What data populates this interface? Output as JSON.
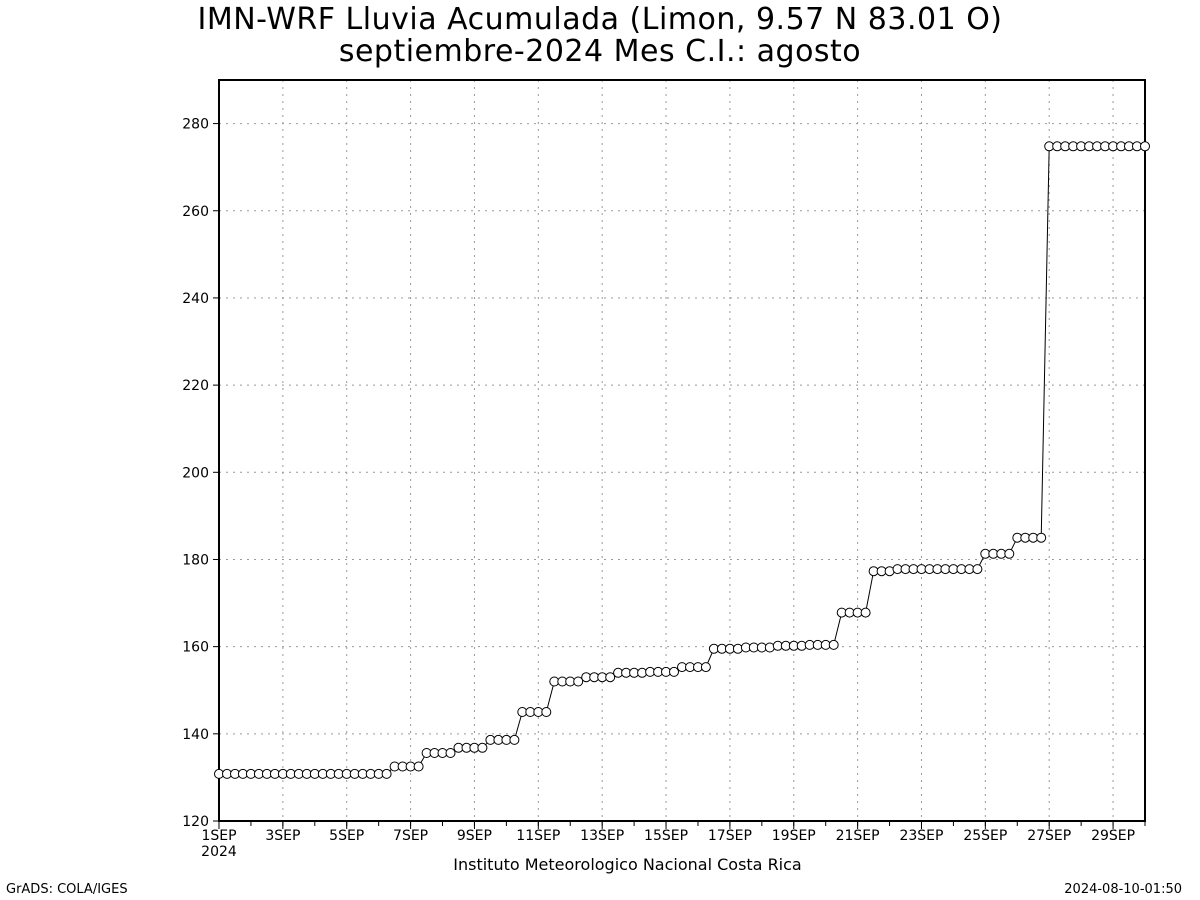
{
  "chart_data": {
    "type": "line",
    "title": "IMN-WRF  Lluvia Acumulada (Limon, 9.57  N 83.01  O)",
    "subtitle": "septiembre-2024 Mes C.I.: agosto",
    "xlabel": "",
    "ylabel": "",
    "ylim": [
      120,
      290
    ],
    "xlim": [
      1,
      30
    ],
    "yticks": [
      120,
      140,
      160,
      180,
      200,
      220,
      240,
      260,
      280
    ],
    "xticks": [
      {
        "day": 1,
        "label": "1SEP"
      },
      {
        "day": 3,
        "label": "3SEP"
      },
      {
        "day": 5,
        "label": "5SEP"
      },
      {
        "day": 7,
        "label": "7SEP"
      },
      {
        "day": 9,
        "label": "9SEP"
      },
      {
        "day": 11,
        "label": "11SEP"
      },
      {
        "day": 13,
        "label": "13SEP"
      },
      {
        "day": 15,
        "label": "15SEP"
      },
      {
        "day": 17,
        "label": "17SEP"
      },
      {
        "day": 19,
        "label": "19SEP"
      },
      {
        "day": 21,
        "label": "21SEP"
      },
      {
        "day": 23,
        "label": "23SEP"
      },
      {
        "day": 25,
        "label": "25SEP"
      },
      {
        "day": 27,
        "label": "27SEP"
      },
      {
        "day": 29,
        "label": "29SEP"
      }
    ],
    "year_label": "2024",
    "grid": true,
    "marker": "open-circle",
    "series": [
      {
        "steps_per_day": 4,
        "values": [
          130.8,
          130.8,
          130.8,
          130.8,
          130.8,
          130.8,
          130.8,
          130.8,
          130.8,
          130.8,
          130.8,
          130.8,
          130.8,
          130.8,
          130.8,
          130.8,
          130.8,
          130.8,
          130.8,
          130.8,
          130.8,
          130.8,
          132.5,
          132.5,
          132.5,
          132.5,
          135.6,
          135.6,
          135.6,
          135.6,
          136.8,
          136.8,
          136.8,
          136.8,
          138.6,
          138.6,
          138.6,
          138.6,
          145.0,
          145.0,
          145.0,
          145.0,
          152.0,
          152.0,
          152.0,
          152.0,
          153.0,
          153.0,
          153.0,
          153.0,
          154.0,
          154.0,
          154.0,
          154.0,
          154.2,
          154.2,
          154.2,
          154.2,
          155.3,
          155.3,
          155.3,
          155.3,
          159.5,
          159.5,
          159.5,
          159.5,
          159.8,
          159.8,
          159.8,
          159.8,
          160.2,
          160.2,
          160.2,
          160.2,
          160.4,
          160.4,
          160.4,
          160.4,
          167.8,
          167.8,
          167.8,
          167.8,
          177.3,
          177.3,
          177.3,
          177.8,
          177.8,
          177.8,
          177.8,
          177.8,
          177.8,
          177.8,
          177.8,
          177.8,
          177.8,
          177.8,
          181.3,
          181.3,
          181.3,
          181.3,
          185.0,
          185.0,
          185.0,
          185.0,
          274.8,
          274.8,
          274.8,
          274.8,
          274.8,
          274.8,
          274.8,
          274.8,
          274.8,
          274.8,
          274.8,
          274.8,
          274.8
        ]
      }
    ]
  },
  "footer": {
    "credit_left": "GrADS: COLA/IGES",
    "credit_right": "2024-08-10-01:50",
    "institution": "Instituto Meteorologico Nacional Costa Rica"
  }
}
